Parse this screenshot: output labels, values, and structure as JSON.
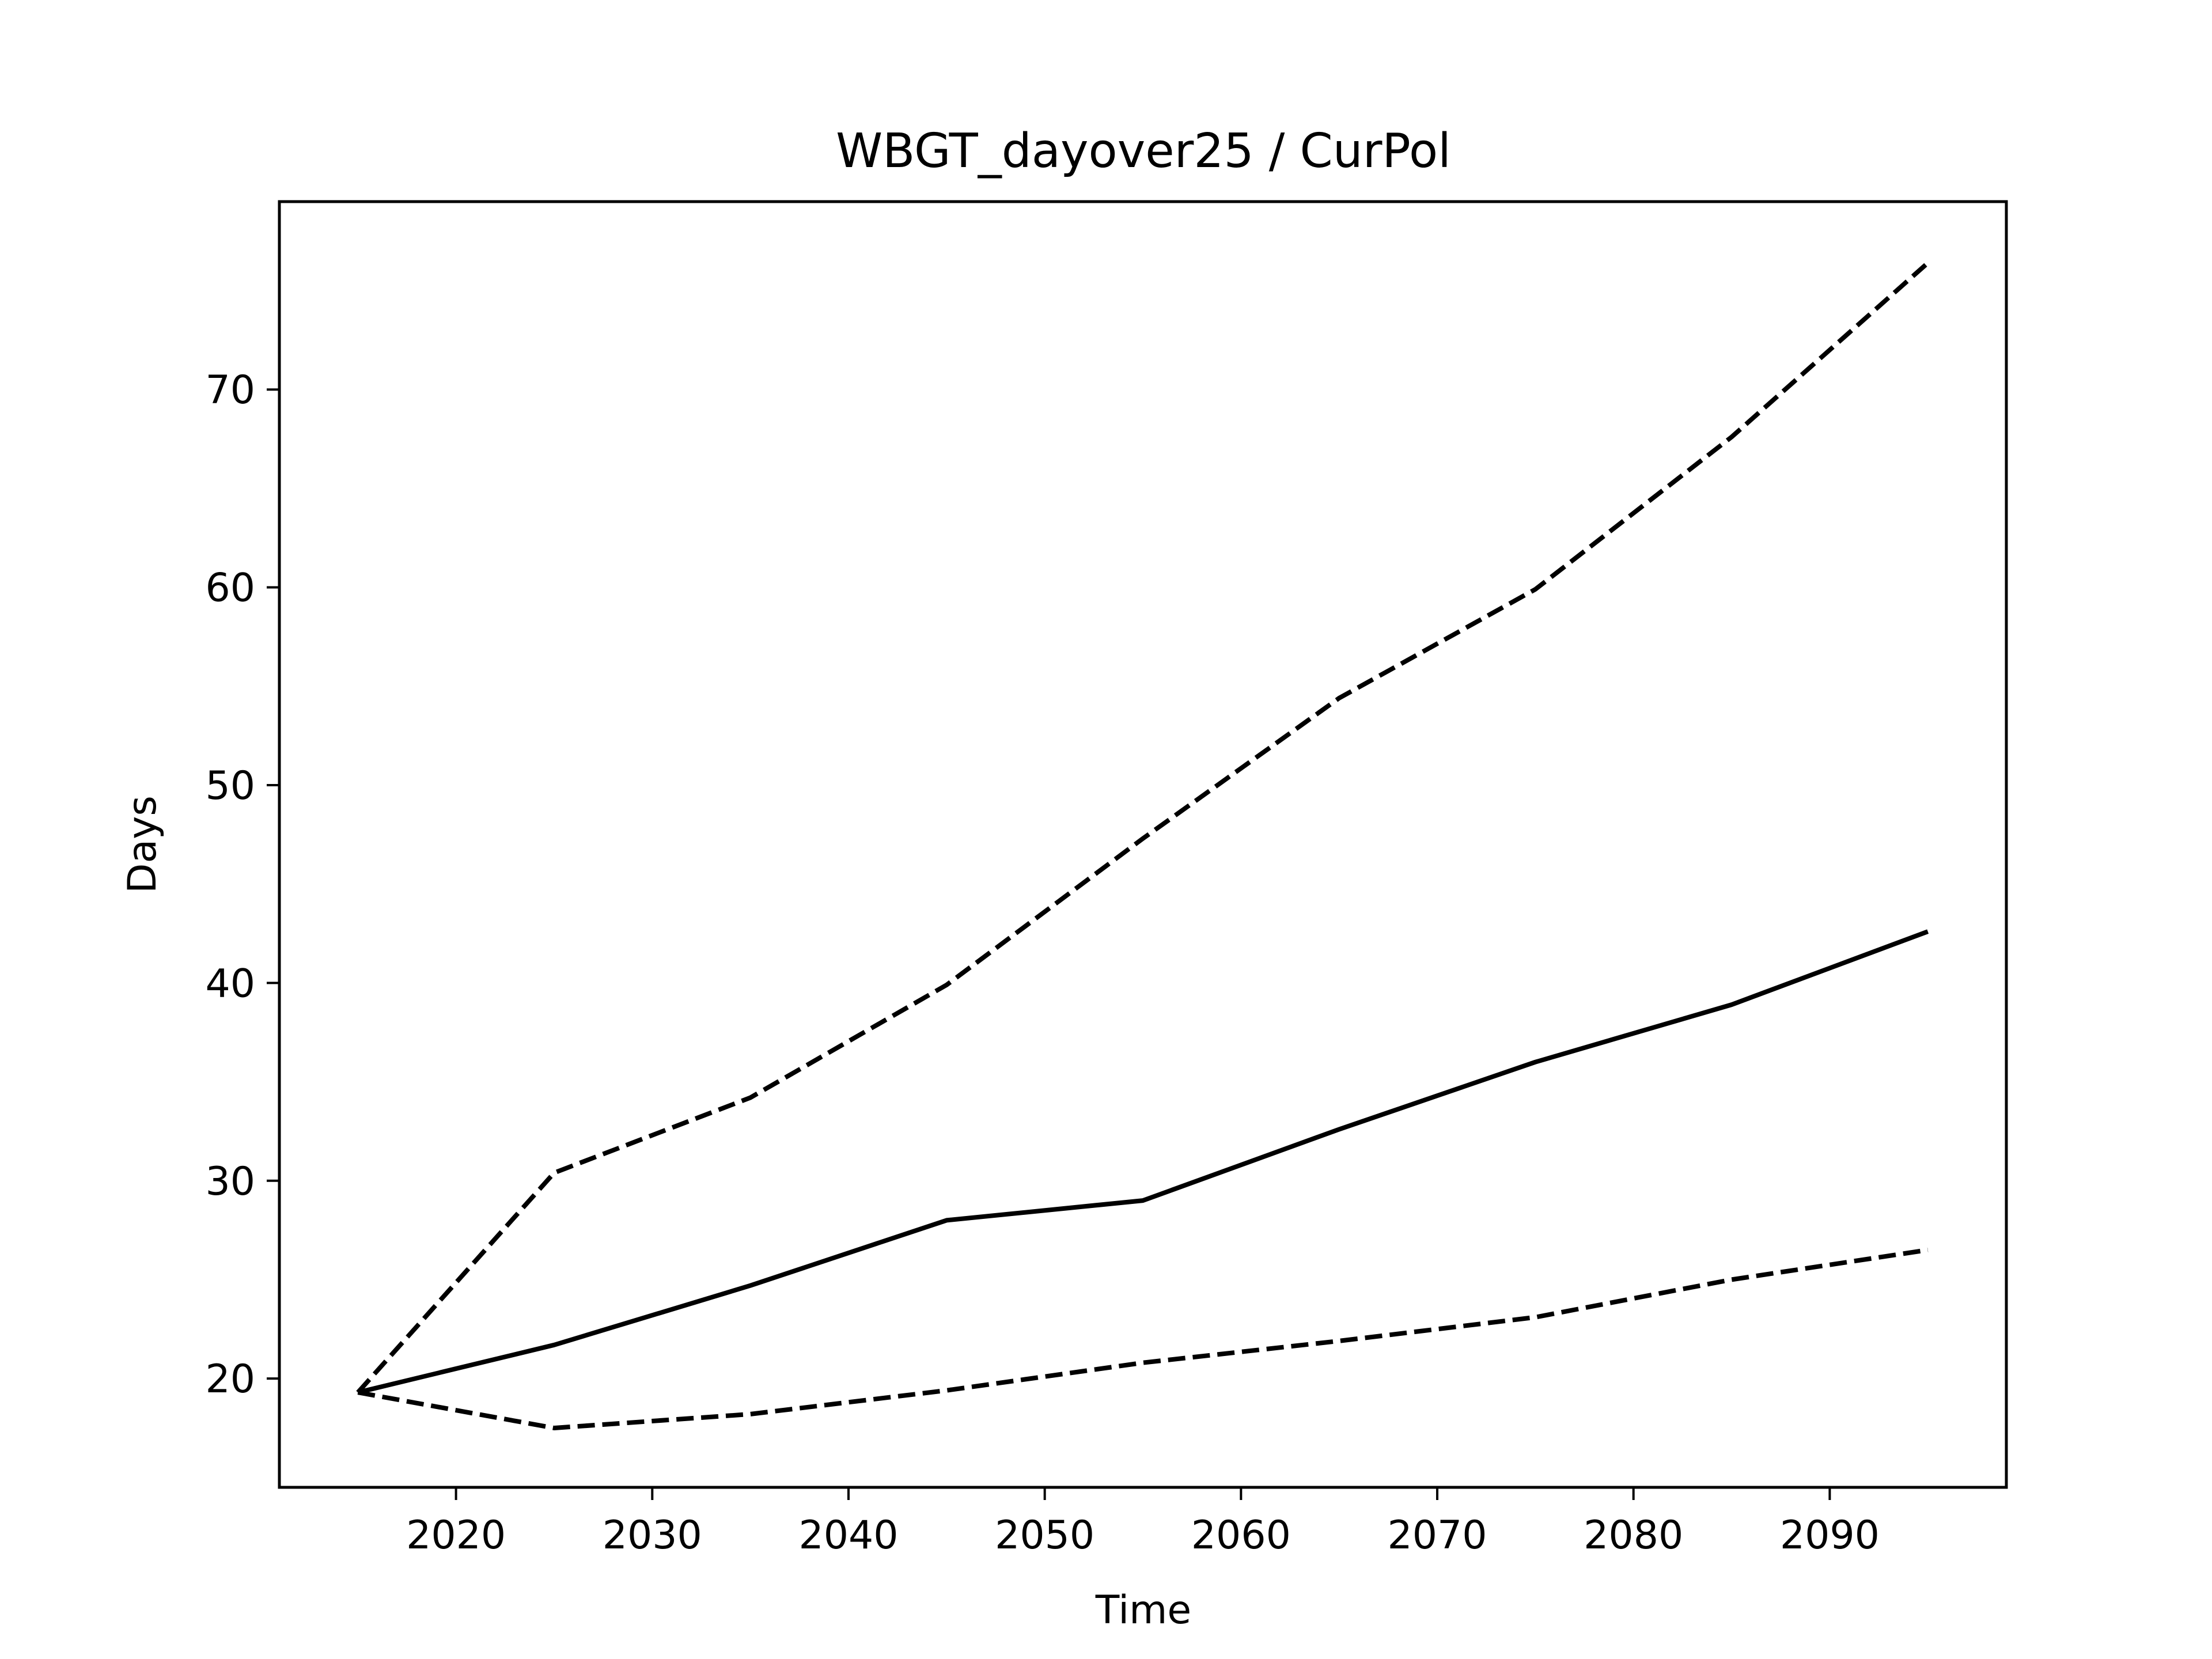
{
  "chart_data": {
    "type": "line",
    "title": "WBGT_dayover25 / CurPol",
    "xlabel": "Time",
    "ylabel": "Days",
    "xlim": [
      2011,
      2099
    ],
    "ylim": [
      14.5,
      79.5
    ],
    "x_ticks": [
      2020,
      2030,
      2040,
      2050,
      2060,
      2070,
      2080,
      2090
    ],
    "y_ticks": [
      20,
      30,
      40,
      50,
      60,
      70
    ],
    "grid": false,
    "legend": "none",
    "x": [
      2015,
      2025,
      2035,
      2045,
      2055,
      2065,
      2075,
      2085,
      2095
    ],
    "series": [
      {
        "style": "solid",
        "color": "#000000",
        "values": [
          19.3,
          21.7,
          24.7,
          28.0,
          29.0,
          32.6,
          36.0,
          38.9,
          42.6
        ]
      },
      {
        "style": "dashed",
        "color": "#000000",
        "values": [
          19.3,
          30.4,
          34.2,
          39.9,
          47.3,
          54.4,
          59.9,
          67.6,
          76.4
        ]
      },
      {
        "style": "dashed",
        "color": "#000000",
        "values": [
          19.3,
          17.5,
          18.2,
          19.4,
          20.8,
          21.9,
          23.1,
          25.0,
          26.5
        ]
      }
    ]
  }
}
